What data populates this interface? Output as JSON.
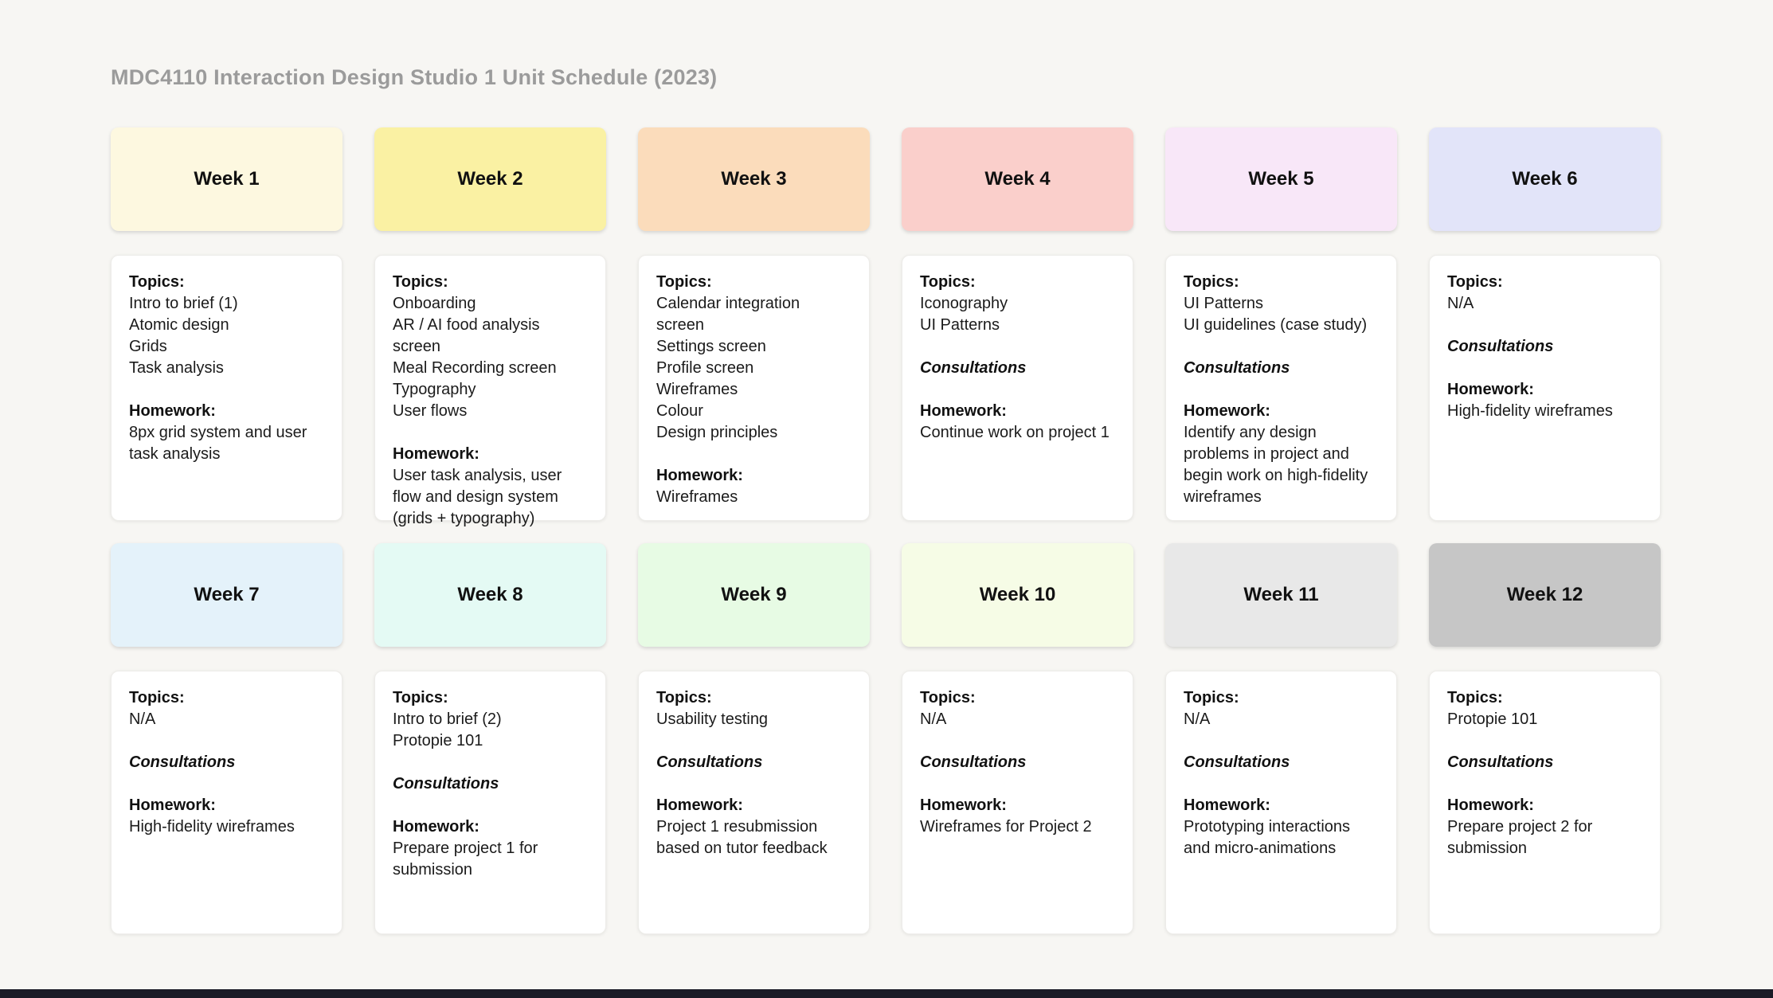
{
  "page": {
    "title": "MDC4110 Interaction Design Studio 1 Unit Schedule (2023)",
    "background_color": "#F7F6F3",
    "title_color": "#9B9B9B",
    "bottom_bar_color": "#1A1B26"
  },
  "weeks": [
    {
      "label": "Week 1",
      "header_color": "#FDF8E0",
      "sections": [
        {
          "style": "bold",
          "label": "Topics:",
          "lines": [
            "Intro to brief (1)",
            "Atomic design",
            "Grids",
            "Task analysis"
          ]
        },
        {
          "style": "bold",
          "label": "Homework:",
          "lines": [
            "8px grid system and user task analysis"
          ]
        }
      ]
    },
    {
      "label": "Week 2",
      "header_color": "#FAF1A3",
      "sections": [
        {
          "style": "bold",
          "label": "Topics:",
          "lines": [
            "Onboarding",
            "AR / AI food analysis screen",
            "Meal Recording screen",
            "Typography",
            "User flows"
          ]
        },
        {
          "style": "bold",
          "label": "Homework:",
          "lines": [
            "User task analysis, user flow and design system (grids + typography)"
          ]
        }
      ]
    },
    {
      "label": "Week 3",
      "header_color": "#FBDCBB",
      "sections": [
        {
          "style": "bold",
          "label": "Topics:",
          "lines": [
            "Calendar integration screen",
            "Settings screen",
            "Profile screen",
            "Wireframes",
            "Colour",
            "Design principles"
          ]
        },
        {
          "style": "bold",
          "label": "Homework:",
          "lines": [
            "Wireframes"
          ]
        }
      ]
    },
    {
      "label": "Week 4",
      "header_color": "#FACFCB",
      "sections": [
        {
          "style": "bold",
          "label": "Topics:",
          "lines": [
            "Iconography",
            "UI Patterns"
          ]
        },
        {
          "style": "bold-italic",
          "label": "Consultations",
          "lines": []
        },
        {
          "style": "bold",
          "label": "Homework:",
          "lines": [
            "Continue work on project 1"
          ]
        }
      ]
    },
    {
      "label": "Week 5",
      "header_color": "#F8E7F8",
      "sections": [
        {
          "style": "bold",
          "label": "Topics:",
          "lines": [
            "UI Patterns",
            "UI guidelines (case study)"
          ]
        },
        {
          "style": "bold-italic",
          "label": "Consultations",
          "lines": []
        },
        {
          "style": "bold",
          "label": "Homework:",
          "lines": [
            "Identify any design problems in project and begin work on high-fidelity wireframes"
          ]
        }
      ]
    },
    {
      "label": "Week 6",
      "header_color": "#E2E4F9",
      "sections": [
        {
          "style": "bold",
          "label": "Topics:",
          "lines": [
            "N/A"
          ]
        },
        {
          "style": "bold-italic",
          "label": "Consultations",
          "lines": []
        },
        {
          "style": "bold",
          "label": "Homework:",
          "lines": [
            "High-fidelity wireframes"
          ]
        }
      ]
    },
    {
      "label": "Week 7",
      "header_color": "#E4F2FA",
      "sections": [
        {
          "style": "bold",
          "label": "Topics:",
          "lines": [
            "N/A"
          ]
        },
        {
          "style": "bold-italic",
          "label": "Consultations",
          "lines": []
        },
        {
          "style": "bold",
          "label": "Homework:",
          "lines": [
            "High-fidelity wireframes"
          ]
        }
      ]
    },
    {
      "label": "Week 8",
      "header_color": "#E4FAF4",
      "sections": [
        {
          "style": "bold",
          "label": "Topics:",
          "lines": [
            "Intro to brief (2)",
            "Protopie 101"
          ]
        },
        {
          "style": "bold-italic",
          "label": "Consultations",
          "lines": []
        },
        {
          "style": "bold",
          "label": "Homework:",
          "lines": [
            "Prepare project 1 for submission"
          ]
        }
      ]
    },
    {
      "label": "Week 9",
      "header_color": "#E7FBE4",
      "sections": [
        {
          "style": "bold",
          "label": "Topics:",
          "lines": [
            "Usability testing"
          ]
        },
        {
          "style": "bold-italic",
          "label": "Consultations",
          "lines": []
        },
        {
          "style": "bold",
          "label": "Homework:",
          "lines": [
            "Project 1 resubmission based on tutor feedback"
          ]
        }
      ]
    },
    {
      "label": "Week 10",
      "header_color": "#F6FCE6",
      "sections": [
        {
          "style": "bold",
          "label": "Topics:",
          "lines": [
            "N/A"
          ]
        },
        {
          "style": "bold-italic",
          "label": "Consultations",
          "lines": []
        },
        {
          "style": "bold",
          "label": "Homework:",
          "lines": [
            "Wireframes for Project 2"
          ]
        }
      ]
    },
    {
      "label": "Week 11",
      "header_color": "#E8E8E8",
      "sections": [
        {
          "style": "bold",
          "label": "Topics:",
          "lines": [
            "N/A"
          ]
        },
        {
          "style": "bold-italic",
          "label": "Consultations",
          "lines": []
        },
        {
          "style": "bold",
          "label": "Homework:",
          "lines": [
            "Prototyping interactions and micro-animations"
          ]
        }
      ]
    },
    {
      "label": "Week 12",
      "header_color": "#C6C6C6",
      "sections": [
        {
          "style": "bold",
          "label": "Topics:",
          "lines": [
            "Protopie 101"
          ]
        },
        {
          "style": "bold-italic",
          "label": "Consultations",
          "lines": []
        },
        {
          "style": "bold",
          "label": "Homework:",
          "lines": [
            "Prepare project 2 for submission"
          ]
        }
      ]
    }
  ]
}
